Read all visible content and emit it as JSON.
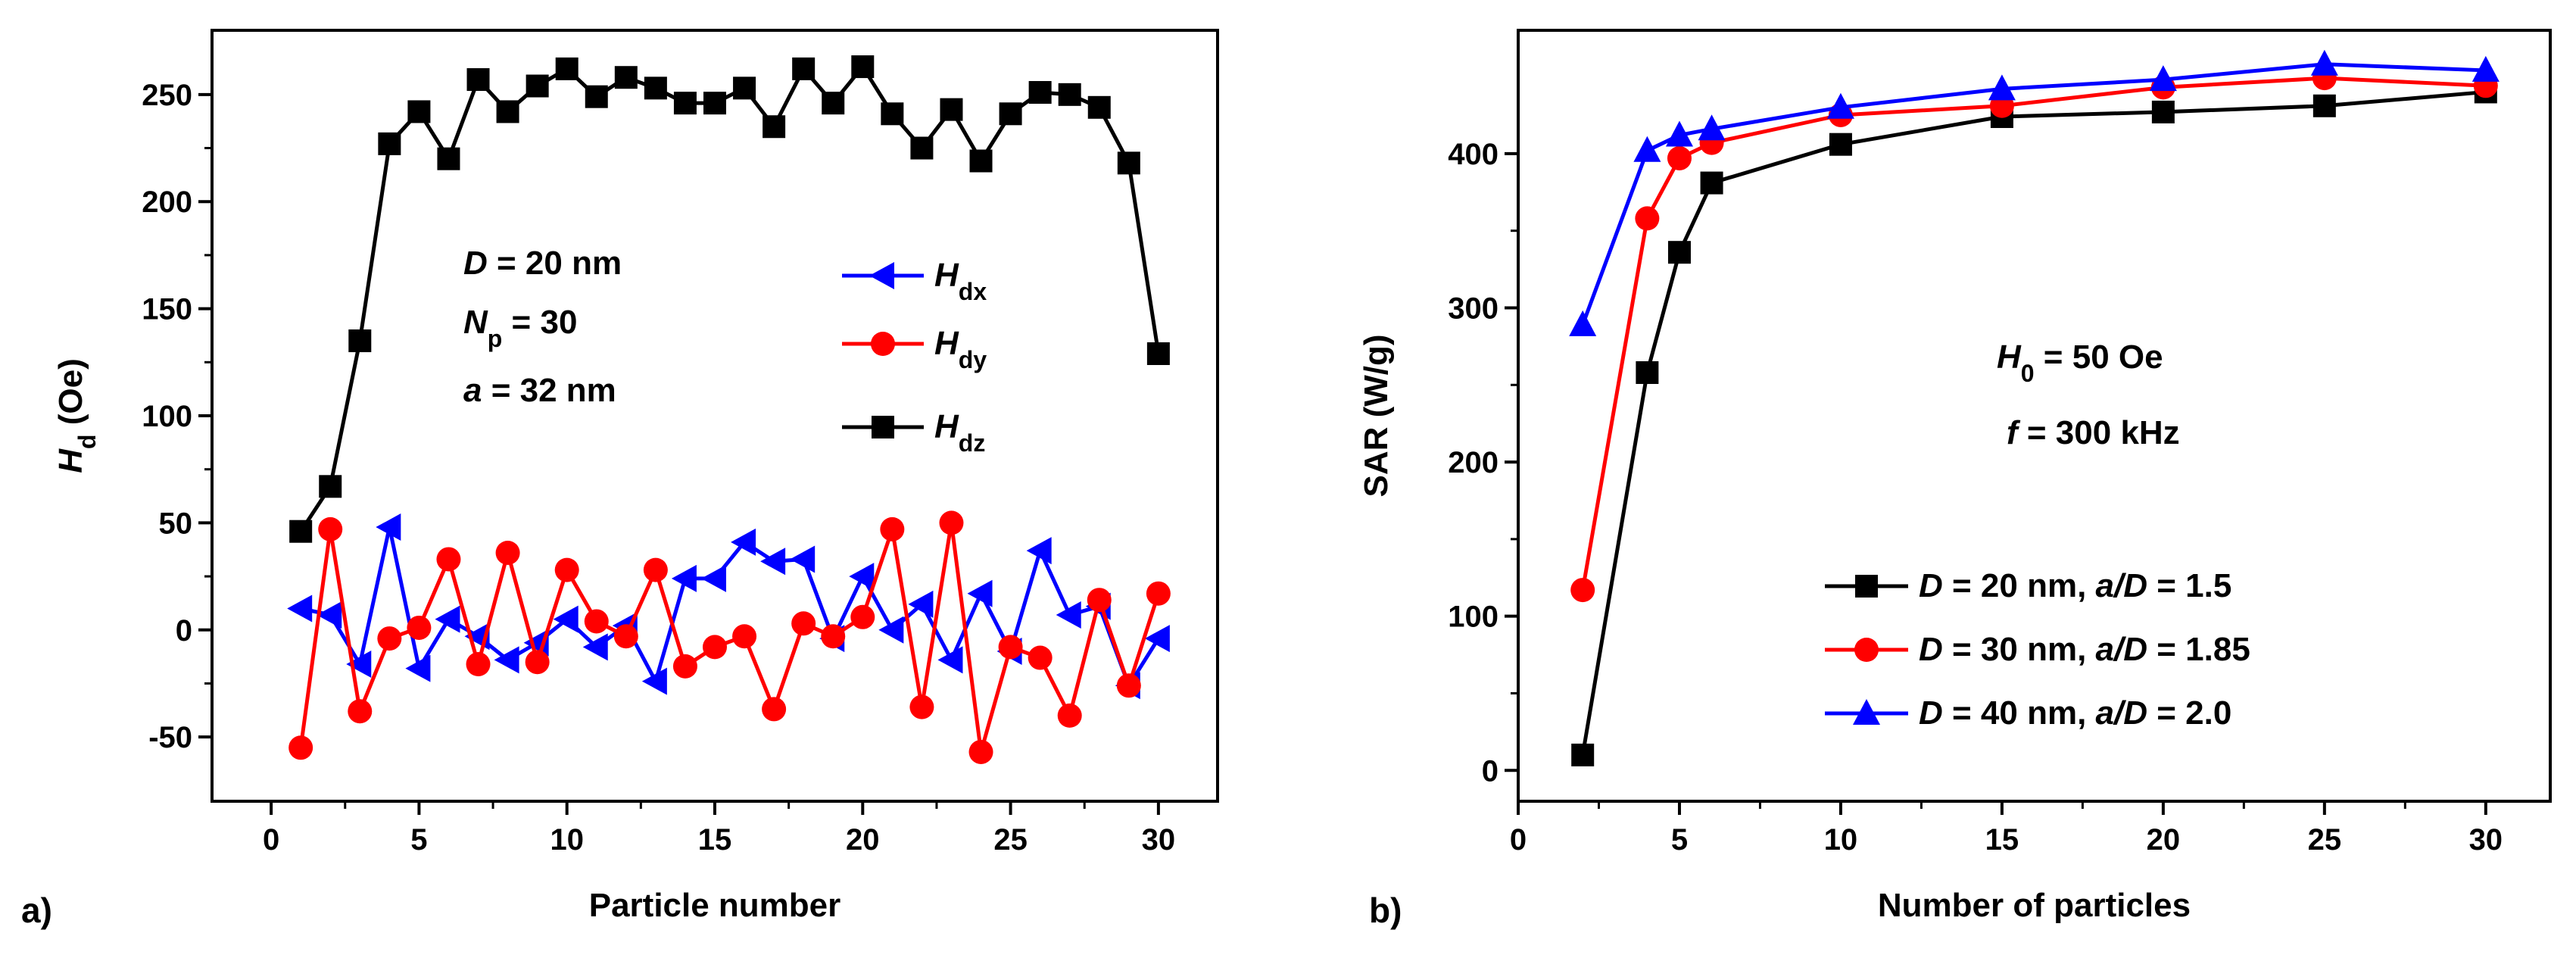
{
  "colors": {
    "black": "#000000",
    "red": "#ff0000",
    "blue": "#0000ff"
  },
  "panel_a": {
    "label": "a)"
  },
  "panel_b": {
    "label": "b)"
  },
  "chart_data": [
    {
      "type": "line",
      "xlabel": "Particle number",
      "ylabel": "H_d (Oe)",
      "ylabel_parts": {
        "main": "H",
        "sub": "d",
        "unit": " (Oe)"
      },
      "xlim": [
        -2,
        32
      ],
      "ylim": [
        -80,
        280
      ],
      "xticks": [
        0,
        5,
        10,
        15,
        20,
        25,
        30
      ],
      "yticks": [
        -50,
        0,
        50,
        100,
        150,
        200,
        250
      ],
      "annotations": [
        {
          "parts": [
            {
              "t": "D",
              "i": true
            },
            {
              "t": " = 20 nm"
            }
          ]
        },
        {
          "parts": [
            {
              "t": "N",
              "i": true
            },
            {
              "t": "p",
              "sub": true
            },
            {
              "t": " = 30"
            }
          ]
        },
        {
          "parts": [
            {
              "t": "a",
              "i": true
            },
            {
              "t": " = 32 nm"
            }
          ]
        }
      ],
      "x": [
        1,
        2,
        3,
        4,
        5,
        6,
        7,
        8,
        9,
        10,
        11,
        12,
        13,
        14,
        15,
        16,
        17,
        18,
        19,
        20,
        21,
        22,
        23,
        24,
        25,
        26,
        27,
        28,
        29,
        30
      ],
      "series": [
        {
          "name": "H_dx",
          "main": "H",
          "sub": "dx",
          "color": "blue",
          "marker": "triangle-left",
          "values": [
            10,
            7,
            -16,
            48,
            -18,
            5,
            -3,
            -14,
            -6,
            5,
            -8,
            2,
            -24,
            24,
            24,
            41,
            32,
            33,
            -4,
            25,
            0,
            12,
            -14,
            17,
            -10,
            37,
            7,
            11,
            -26,
            -4
          ]
        },
        {
          "name": "H_dy",
          "main": "H",
          "sub": "dy",
          "color": "red",
          "marker": "circle",
          "values": [
            -55,
            47,
            -38,
            -4,
            1,
            33,
            -16,
            36,
            -15,
            28,
            4,
            -3,
            28,
            -17,
            -8,
            -3,
            -37,
            3,
            -3,
            6,
            47,
            -36,
            50,
            -57,
            -8,
            -13,
            -40,
            14,
            -26,
            17
          ]
        },
        {
          "name": "H_dz",
          "main": "H",
          "sub": "dz",
          "color": "black",
          "marker": "square",
          "values": [
            46,
            67,
            135,
            227,
            242,
            220,
            257,
            242,
            254,
            262,
            249,
            258,
            253,
            246,
            246,
            253,
            235,
            262,
            246,
            263,
            241,
            225,
            243,
            219,
            241,
            251,
            250,
            244,
            218,
            129
          ]
        }
      ]
    },
    {
      "type": "line",
      "xlabel": "Number of particles",
      "ylabel": "SAR (W/g)",
      "xlim": [
        0,
        32
      ],
      "ylim": [
        -20,
        480
      ],
      "xticks": [
        0,
        5,
        10,
        15,
        20,
        25,
        30
      ],
      "yticks": [
        0,
        100,
        200,
        300,
        400
      ],
      "annotations": [
        {
          "parts": [
            {
              "t": "H",
              "i": true
            },
            {
              "t": "0",
              "sub": true
            },
            {
              "t": " = 50 Oe"
            }
          ]
        },
        {
          "parts": [
            {
              "t": "f",
              "i": true
            },
            {
              "t": " = 300 kHz"
            }
          ]
        }
      ],
      "x": [
        2,
        4,
        5,
        6,
        10,
        15,
        20,
        25,
        30
      ],
      "series": [
        {
          "name": "D = 20 nm, a/D = 1.5",
          "color": "black",
          "marker": "square",
          "parts": [
            {
              "t": "D",
              "i": true
            },
            {
              "t": " = 20 nm, "
            },
            {
              "t": "a/D",
              "i": true
            },
            {
              "t": " = 1.5"
            }
          ],
          "values": [
            10,
            258,
            336,
            381,
            406,
            424,
            427,
            431,
            440
          ]
        },
        {
          "name": "D = 30 nm, a/D = 1.85",
          "color": "red",
          "marker": "circle",
          "parts": [
            {
              "t": "D",
              "i": true
            },
            {
              "t": " = 30 nm, "
            },
            {
              "t": "a/D",
              "i": true
            },
            {
              "t": " = 1.85"
            }
          ],
          "values": [
            117,
            358,
            397,
            407,
            425,
            431,
            443,
            449,
            444
          ]
        },
        {
          "name": "D = 40 nm, a/D = 2.0",
          "color": "blue",
          "marker": "triangle-up",
          "parts": [
            {
              "t": "D",
              "i": true
            },
            {
              "t": " = 40 nm, "
            },
            {
              "t": "a/D",
              "i": true
            },
            {
              "t": " = 2.0"
            }
          ],
          "values": [
            289,
            402,
            412,
            416,
            430,
            442,
            448,
            458,
            454
          ]
        }
      ]
    }
  ]
}
